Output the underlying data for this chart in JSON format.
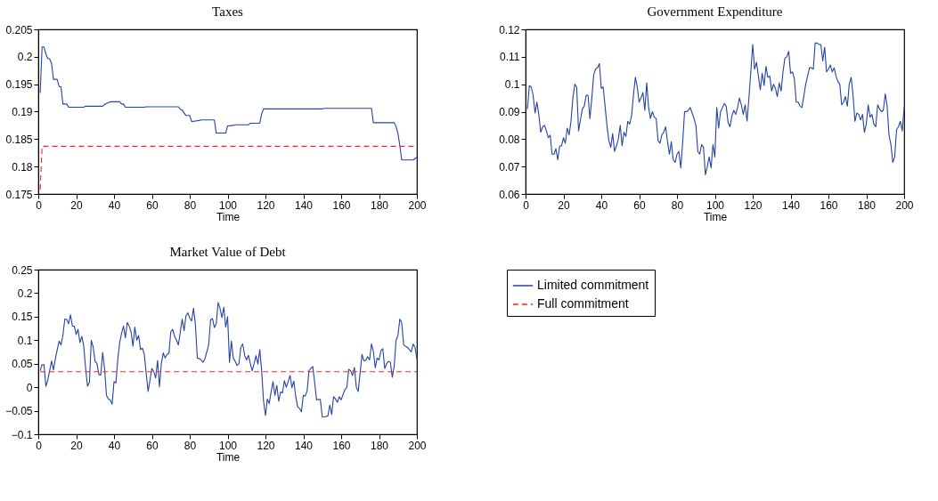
{
  "chart_data": [
    {
      "type": "line",
      "title": "Taxes",
      "xlabel": "Time",
      "xlim": [
        0,
        200
      ],
      "xticks": [
        0,
        20,
        40,
        60,
        80,
        100,
        120,
        140,
        160,
        180,
        200
      ],
      "ylim": [
        0.175,
        0.205
      ],
      "yticks": [
        0.175,
        0.18,
        0.185,
        0.19,
        0.195,
        0.2,
        0.205
      ],
      "grid": false,
      "legend": false,
      "marker": "none",
      "series": [
        {
          "color": "#2443a5",
          "line_style": "solid",
          "x": [
            1,
            2,
            3,
            4,
            5,
            6,
            7,
            8,
            10,
            11,
            12,
            13,
            15,
            16,
            24,
            25,
            34,
            35,
            36,
            38,
            43,
            44,
            45,
            46,
            56,
            57,
            74,
            75,
            76,
            78,
            80,
            81,
            83,
            85,
            86,
            93,
            94,
            99,
            100,
            103,
            104,
            111,
            112,
            117,
            118,
            119,
            150,
            151,
            176,
            177,
            188,
            189,
            190,
            191,
            192,
            198,
            200
          ],
          "values": [
            0.1934,
            0.2018,
            0.2018,
            0.2005,
            0.1997,
            0.1996,
            0.1988,
            0.1959,
            0.1959,
            0.1946,
            0.1945,
            0.1914,
            0.1914,
            0.1908,
            0.1908,
            0.191,
            0.191,
            0.1913,
            0.1915,
            0.1918,
            0.1918,
            0.1914,
            0.1914,
            0.1908,
            0.1908,
            0.1909,
            0.1909,
            0.1904,
            0.1903,
            0.1893,
            0.1893,
            0.1882,
            0.1883,
            0.1884,
            0.1885,
            0.1885,
            0.1861,
            0.1861,
            0.1874,
            0.1875,
            0.1876,
            0.1876,
            0.1879,
            0.1879,
            0.1896,
            0.1905,
            0.1905,
            0.1906,
            0.1906,
            0.188,
            0.188,
            0.1873,
            0.186,
            0.1838,
            0.1812,
            0.1812,
            0.1817
          ]
        },
        {
          "color": "#ff2020",
          "line_style": "dashed",
          "x": [
            1,
            2,
            200
          ],
          "values": [
            0.1758,
            0.1837,
            0.1837
          ]
        }
      ]
    },
    {
      "type": "line",
      "title": "Government Expenditure",
      "xlabel": "Time",
      "xlim": [
        0,
        200
      ],
      "xticks": [
        0,
        20,
        40,
        60,
        80,
        100,
        120,
        140,
        160,
        180,
        200
      ],
      "ylim": [
        0.06,
        0.12
      ],
      "yticks": [
        0.06,
        0.07,
        0.08,
        0.09,
        0.1,
        0.11,
        0.12
      ],
      "grid": false,
      "legend": false,
      "marker": "none",
      "series": [
        {
          "color": "#2443a5",
          "line_style": "solid",
          "x": [
            1,
            2,
            3,
            4,
            5,
            6,
            7,
            8,
            9,
            10,
            11,
            12,
            13,
            14,
            15,
            16,
            17,
            18,
            19,
            20,
            21,
            22,
            23,
            24,
            25,
            26,
            27,
            28,
            29,
            30,
            31,
            32,
            33,
            34,
            35,
            36,
            37,
            38,
            39,
            40,
            41,
            42,
            43,
            44,
            45,
            46,
            47,
            48,
            49,
            50,
            51,
            52,
            53,
            54,
            55,
            56,
            57,
            58,
            59,
            60,
            61,
            62,
            63,
            64,
            65,
            66,
            67,
            68,
            69,
            70,
            71,
            72,
            73,
            74,
            75,
            76,
            77,
            78,
            79,
            80,
            81,
            82,
            83,
            84,
            85,
            86,
            87,
            88,
            89,
            90,
            91,
            92,
            93,
            94,
            95,
            96,
            97,
            98,
            99,
            100,
            101,
            102,
            103,
            104,
            105,
            106,
            107,
            108,
            109,
            110,
            111,
            112,
            113,
            114,
            115,
            116,
            117,
            118,
            119,
            120,
            121,
            122,
            123,
            124,
            125,
            126,
            127,
            128,
            129,
            130,
            131,
            132,
            133,
            134,
            135,
            136,
            137,
            138,
            139,
            140,
            141,
            142,
            143,
            144,
            145,
            146,
            148,
            150,
            151,
            152,
            153,
            154,
            155,
            156,
            157,
            158,
            159,
            160,
            161,
            162,
            163,
            164,
            165,
            166,
            167,
            168,
            169,
            170,
            171,
            172,
            173,
            174,
            175,
            176,
            177,
            178,
            179,
            180,
            181,
            182,
            183,
            184,
            185,
            186,
            187,
            188,
            189,
            190,
            191,
            192,
            193,
            194,
            195,
            196,
            197,
            198,
            199,
            200
          ],
          "values": [
            0.091,
            0.0995,
            0.099,
            0.096,
            0.0895,
            0.0935,
            0.089,
            0.0825,
            0.0845,
            0.085,
            0.083,
            0.0805,
            0.0815,
            0.0745,
            0.0745,
            0.0765,
            0.0725,
            0.0775,
            0.0775,
            0.0805,
            0.0785,
            0.084,
            0.0815,
            0.0865,
            0.095,
            0.1,
            0.099,
            0.083,
            0.087,
            0.091,
            0.092,
            0.096,
            0.096,
            0.0875,
            0.095,
            0.1035,
            0.1055,
            0.106,
            0.1075,
            0.0985,
            0.099,
            0.092,
            0.085,
            0.0795,
            0.077,
            0.082,
            0.0755,
            0.0775,
            0.08,
            0.085,
            0.0775,
            0.0825,
            0.081,
            0.0865,
            0.0855,
            0.0885,
            0.096,
            0.1025,
            0.099,
            0.0935,
            0.095,
            0.097,
            0.0905,
            0.1005,
            0.0915,
            0.0875,
            0.09,
            0.088,
            0.0875,
            0.0795,
            0.0785,
            0.0815,
            0.0825,
            0.0845,
            0.079,
            0.0745,
            0.079,
            0.0725,
            0.0715,
            0.0745,
            0.0755,
            0.0695,
            0.079,
            0.09,
            0.09,
            0.0905,
            0.0915,
            0.0895,
            0.0875,
            0.085,
            0.0755,
            0.0745,
            0.078,
            0.077,
            0.067,
            0.07,
            0.0735,
            0.0695,
            0.078,
            0.0735,
            0.0915,
            0.084,
            0.09,
            0.0915,
            0.093,
            0.092,
            0.086,
            0.0845,
            0.0885,
            0.0905,
            0.089,
            0.0915,
            0.095,
            0.0925,
            0.089,
            0.0925,
            0.0865,
            0.095,
            0.1045,
            0.1145,
            0.1055,
            0.108,
            0.103,
            0.098,
            0.104,
            0.0995,
            0.1065,
            0.1025,
            0.103,
            0.0975,
            0.1,
            0.0985,
            0.0955,
            0.1005,
            0.0975,
            0.1045,
            0.1095,
            0.11,
            0.112,
            0.104,
            0.1045,
            0.102,
            0.0935,
            0.0935,
            0.092,
            0.0915,
            0.1,
            0.106,
            0.106,
            0.1055,
            0.115,
            0.115,
            0.1145,
            0.1145,
            0.1085,
            0.1135,
            0.1045,
            0.1055,
            0.107,
            0.1045,
            0.106,
            0.103,
            0.101,
            0.1,
            0.0925,
            0.0935,
            0.0955,
            0.092,
            0.1,
            0.1025,
            0.096,
            0.0865,
            0.0895,
            0.089,
            0.087,
            0.089,
            0.0825,
            0.0855,
            0.0925,
            0.088,
            0.089,
            0.0855,
            0.0845,
            0.0925,
            0.091,
            0.09,
            0.0905,
            0.0965,
            0.092,
            0.0815,
            0.078,
            0.0715,
            0.0735,
            0.0835,
            0.0845,
            0.0865,
            0.083,
            0.0915
          ]
        }
      ]
    },
    {
      "type": "line",
      "title": "Market Value of Debt",
      "xlabel": "Time",
      "xlim": [
        0,
        200
      ],
      "xticks": [
        0,
        20,
        40,
        60,
        80,
        100,
        120,
        140,
        160,
        180,
        200
      ],
      "ylim": [
        -0.1,
        0.25
      ],
      "yticks": [
        -0.1,
        -0.05,
        0,
        0.05,
        0.1,
        0.15,
        0.2,
        0.25
      ],
      "grid": false,
      "legend": "right",
      "marker": "none",
      "series": [
        {
          "name": "Limited commitment",
          "color": "#2443a5",
          "line_style": "solid",
          "x": [
            1,
            2,
            3,
            4,
            5,
            6,
            7,
            8,
            9,
            10,
            11,
            12,
            13,
            14,
            15,
            16,
            17,
            18,
            19,
            20,
            21,
            22,
            23,
            24,
            25,
            26,
            27,
            28,
            29,
            30,
            31,
            32,
            33,
            34,
            35,
            36,
            37,
            38,
            39,
            40,
            41,
            42,
            43,
            44,
            45,
            46,
            47,
            48,
            49,
            50,
            51,
            52,
            53,
            54,
            55,
            56,
            57,
            58,
            59,
            60,
            61,
            62,
            63,
            64,
            65,
            66,
            67,
            68,
            69,
            70,
            71,
            72,
            73,
            74,
            75,
            76,
            77,
            78,
            79,
            80,
            81,
            82,
            83,
            84,
            85,
            86,
            87,
            88,
            89,
            90,
            91,
            92,
            93,
            94,
            95,
            96,
            97,
            98,
            99,
            100,
            101,
            102,
            103,
            104,
            105,
            106,
            107,
            108,
            109,
            110,
            111,
            112,
            113,
            114,
            115,
            116,
            117,
            118,
            119,
            120,
            121,
            122,
            123,
            124,
            125,
            126,
            127,
            128,
            129,
            130,
            131,
            132,
            133,
            134,
            135,
            136,
            137,
            138,
            139,
            140,
            141,
            142,
            143,
            144,
            145,
            146,
            147,
            148,
            149,
            150,
            151,
            152,
            153,
            154,
            155,
            156,
            157,
            158,
            159,
            160,
            161,
            162,
            163,
            164,
            165,
            166,
            167,
            168,
            169,
            170,
            171,
            172,
            173,
            174,
            175,
            176,
            177,
            178,
            179,
            180,
            181,
            182,
            183,
            184,
            185,
            186,
            187,
            188,
            189,
            190,
            191,
            192,
            193,
            194,
            195,
            196,
            197,
            198,
            199,
            200
          ],
          "values": [
            0.035,
            0.048,
            0.048,
            0.002,
            0.015,
            0.035,
            0.056,
            0.037,
            0.06,
            0.08,
            0.098,
            0.09,
            0.11,
            0.145,
            0.144,
            0.135,
            0.154,
            0.13,
            0.13,
            0.112,
            0.123,
            0.095,
            0.108,
            0.088,
            0.04,
            0.002,
            0.01,
            0.1,
            0.085,
            0.055,
            0.05,
            0.027,
            0.026,
            0.074,
            0.04,
            -0.017,
            -0.025,
            -0.027,
            -0.036,
            0.012,
            0.009,
            0.06,
            0.095,
            0.115,
            0.13,
            0.105,
            0.138,
            0.13,
            0.118,
            0.087,
            0.128,
            0.1,
            0.11,
            0.08,
            0.083,
            0.07,
            0.03,
            -0.009,
            0.015,
            0.04,
            0.033,
            0.02,
            0.057,
            0.001,
            0.05,
            0.073,
            0.062,
            0.07,
            0.072,
            0.118,
            0.123,
            0.108,
            0.1,
            0.09,
            0.117,
            0.145,
            0.12,
            0.152,
            0.158,
            0.147,
            0.141,
            0.168,
            0.133,
            0.062,
            0.061,
            0.058,
            0.053,
            0.06,
            0.075,
            0.09,
            0.143,
            0.146,
            0.127,
            0.135,
            0.18,
            0.168,
            0.148,
            0.17,
            0.128,
            0.15,
            0.053,
            0.098,
            0.062,
            0.055,
            0.046,
            0.05,
            0.085,
            0.092,
            0.068,
            0.058,
            0.068,
            0.05,
            0.035,
            0.05,
            0.067,
            0.049,
            0.08,
            0.035,
            -0.03,
            -0.06,
            -0.025,
            -0.035,
            -0.01,
            0.012,
            -0.017,
            0.004,
            -0.03,
            -0.01,
            -0.012,
            0.014,
            0.0,
            0.012,
            0.025,
            -0.001,
            0.013,
            -0.02,
            -0.042,
            -0.045,
            -0.052,
            -0.017,
            -0.019,
            -0.008,
            0.035,
            0.04,
            0.044,
            0.01,
            -0.027,
            -0.026,
            -0.026,
            -0.063,
            -0.063,
            -0.062,
            -0.061,
            -0.038,
            -0.058,
            -0.02,
            -0.025,
            -0.032,
            -0.02,
            -0.027,
            -0.015,
            -0.005,
            0.0,
            0.038,
            0.035,
            0.025,
            0.042,
            0.0,
            -0.009,
            0.03,
            0.07,
            0.056,
            0.057,
            0.065,
            0.058,
            0.092,
            0.077,
            0.041,
            0.062,
            0.058,
            0.078,
            0.082,
            0.04,
            0.05,
            0.055,
            0.053,
            0.021,
            0.045,
            0.1,
            0.11,
            0.145,
            0.137,
            0.09,
            0.087,
            0.085,
            0.08,
            0.075,
            0.092,
            0.085,
            0.06
          ]
        },
        {
          "name": "Full commitment",
          "color": "#ff2020",
          "line_style": "dashed",
          "x": [
            1,
            200
          ],
          "values": [
            0.033,
            0.033
          ]
        }
      ]
    }
  ]
}
